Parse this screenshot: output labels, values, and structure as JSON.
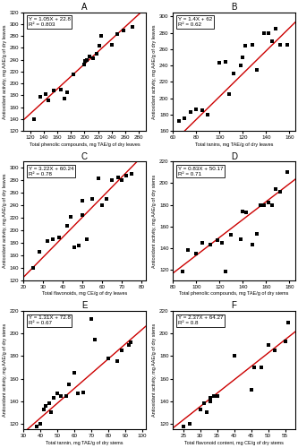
{
  "chart_data": [
    {
      "type": "scatter",
      "title": "A",
      "xlabel": "Total phenolic compounds, mg TAE/g of dry leaves",
      "ylabel": "Antioxidant activity, mg AAE/g of dry leaves",
      "annotations": [
        "Y = 1.05X + 22.8",
        "R² = 0.803"
      ],
      "x": [
        125,
        135,
        143,
        147,
        155,
        165,
        170,
        175,
        183,
        200,
        201,
        203,
        207,
        213,
        218,
        222,
        225,
        240,
        248,
        258,
        270
      ],
      "values": [
        140,
        178,
        182,
        172,
        188,
        190,
        175,
        185,
        215,
        232,
        238,
        240,
        245,
        243,
        250,
        264,
        280,
        265,
        283,
        290,
        295
      ],
      "color": "#000000",
      "marker": "square",
      "fit": {
        "slope": 1.05,
        "intercept": 22.8,
        "color": "#cc0000"
      },
      "xlim": [
        110,
        290
      ],
      "ylim": [
        120,
        320
      ],
      "xticks": [
        120,
        140,
        160,
        180,
        200,
        220,
        240,
        260,
        280
      ],
      "yticks": [
        120,
        140,
        160,
        180,
        200,
        220,
        240,
        260,
        280,
        300,
        320
      ]
    },
    {
      "type": "scatter",
      "title": "B",
      "xlabel": "Total tanins, mg TAE/g of dry leaves",
      "ylabel": "Antioxidant activity, mg AAE/g of dry leaves",
      "annotations": [
        "Y = 1.4X + 62",
        "R² = 0.62"
      ],
      "x": [
        65,
        70,
        75,
        80,
        85,
        90,
        100,
        105,
        108,
        112,
        118,
        120,
        122,
        128,
        132,
        138,
        142,
        145,
        148,
        152,
        158
      ],
      "values": [
        172,
        175,
        183,
        186,
        185,
        180,
        243,
        245,
        205,
        230,
        240,
        250,
        264,
        265,
        235,
        280,
        279,
        270,
        285,
        265,
        265
      ],
      "color": "#000000",
      "marker": "square",
      "fit": {
        "slope": 1.4,
        "intercept": 62,
        "color": "#cc0000"
      },
      "xlim": [
        60,
        165
      ],
      "ylim": [
        160,
        305
      ],
      "xticks": [
        60,
        80,
        100,
        120,
        140,
        160
      ],
      "yticks": [
        160,
        180,
        200,
        220,
        240,
        260,
        280,
        300
      ]
    },
    {
      "type": "scatter",
      "title": "C",
      "xlabel": "Total flavonoids, mg CE/g of dry leaves",
      "ylabel": "Antioxidant activity, mg AAE/g of dry leaves",
      "annotations": [
        "Y = 3.22X + 60.24",
        "R² = 0.78"
      ],
      "x": [
        25,
        28,
        32,
        35,
        38,
        42,
        44,
        46,
        48,
        50,
        50,
        52,
        55,
        58,
        60,
        62,
        65,
        68,
        70,
        72,
        75
      ],
      "values": [
        140,
        165,
        183,
        185,
        188,
        207,
        222,
        172,
        175,
        225,
        248,
        185,
        250,
        283,
        240,
        250,
        280,
        285,
        280,
        288,
        290
      ],
      "color": "#000000",
      "marker": "square",
      "fit": {
        "slope": 3.22,
        "intercept": 60.24,
        "color": "#cc0000"
      },
      "xlim": [
        20,
        82
      ],
      "ylim": [
        120,
        310
      ],
      "xticks": [
        20,
        30,
        40,
        50,
        60,
        70,
        80
      ],
      "yticks": [
        120,
        140,
        160,
        180,
        200,
        220,
        240,
        260,
        280,
        300
      ]
    },
    {
      "type": "scatter",
      "title": "D",
      "xlabel": "Total phenolic compounds, mg TAE/g of dry stems",
      "ylabel": "Antioxidant activity, mg AAE/g of dry stems",
      "annotations": [
        "Y = 0.83X + 50.17",
        "R² = 0.71"
      ],
      "x": [
        88,
        93,
        100,
        105,
        112,
        118,
        122,
        125,
        130,
        138,
        140,
        143,
        148,
        152,
        155,
        158,
        162,
        165,
        168,
        172,
        178
      ],
      "values": [
        118,
        138,
        135,
        145,
        143,
        147,
        145,
        118,
        152,
        148,
        174,
        173,
        143,
        153,
        180,
        180,
        182,
        180,
        195,
        192,
        210
      ],
      "color": "#000000",
      "marker": "square",
      "fit": {
        "slope": 0.83,
        "intercept": 50.17,
        "color": "#cc0000"
      },
      "xlim": [
        80,
        185
      ],
      "ylim": [
        110,
        220
      ],
      "xticks": [
        80,
        100,
        120,
        140,
        160,
        180
      ],
      "yticks": [
        120,
        140,
        160,
        180,
        200,
        220
      ]
    },
    {
      "type": "scatter",
      "title": "E",
      "xlabel": "Total tannin, mg TAE/g of dry stems",
      "ylabel": "Antioxidant activity, mg AAE/g of dry stems",
      "annotations": [
        "Y = 1.31X + 72.8",
        "R² = 0.67"
      ],
      "x": [
        38,
        40,
        42,
        43,
        45,
        46,
        48,
        50,
        52,
        55,
        57,
        60,
        62,
        65,
        70,
        72,
        80,
        85,
        88,
        92,
        93
      ],
      "values": [
        118,
        120,
        133,
        136,
        138,
        130,
        143,
        147,
        145,
        145,
        155,
        165,
        147,
        148,
        213,
        195,
        178,
        176,
        185,
        190,
        192
      ],
      "color": "#000000",
      "marker": "square",
      "fit": {
        "slope": 1.31,
        "intercept": 72.8,
        "color": "#cc0000"
      },
      "xlim": [
        30,
        102
      ],
      "ylim": [
        115,
        220
      ],
      "xticks": [
        30,
        40,
        50,
        60,
        70,
        80,
        90,
        100
      ],
      "yticks": [
        120,
        140,
        160,
        180,
        200,
        220
      ]
    },
    {
      "type": "scatter",
      "title": "F",
      "xlabel": "Total flavonoid content, mg CE/g of dry stems",
      "ylabel": "Antioxidant activity, mg AAE/g of dry stems",
      "annotations": [
        "Y = 2.37X + 64.27",
        "R² = 0.8"
      ],
      "x": [
        25,
        27,
        30,
        31,
        32,
        33,
        33,
        34,
        35,
        40,
        45,
        46,
        48,
        50,
        52,
        55,
        56
      ],
      "values": [
        118,
        120,
        133,
        138,
        130,
        140,
        143,
        145,
        145,
        180,
        150,
        170,
        170,
        190,
        185,
        193,
        210
      ],
      "color": "#000000",
      "marker": "square",
      "fit": {
        "slope": 2.37,
        "intercept": 64.27,
        "color": "#cc0000"
      },
      "xlim": [
        22,
        58
      ],
      "ylim": [
        115,
        220
      ],
      "xticks": [
        25,
        30,
        35,
        40,
        45,
        50,
        55
      ],
      "yticks": [
        120,
        140,
        160,
        180,
        200,
        220
      ]
    }
  ]
}
